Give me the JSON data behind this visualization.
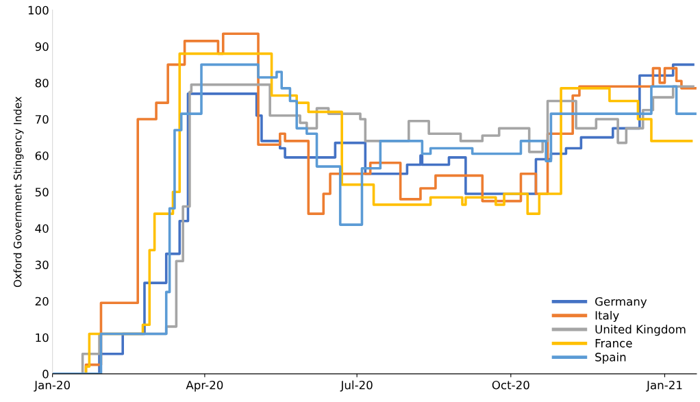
{
  "chart_data": {
    "type": "step",
    "ylabel": "Oxford Government Stingency Index",
    "xlim": [
      "2020-01-01",
      "2021-01-20"
    ],
    "ylim": [
      0,
      100
    ],
    "yticks": [
      0,
      10,
      20,
      30,
      40,
      50,
      60,
      70,
      80,
      90,
      100
    ],
    "xticks": [
      {
        "value": "2020-01-01",
        "label": "Jan-20"
      },
      {
        "value": "2020-04-01",
        "label": "Apr-20"
      },
      {
        "value": "2020-07-01",
        "label": "Jul-20"
      },
      {
        "value": "2020-10-01",
        "label": "Oct-20"
      },
      {
        "value": "2021-01-01",
        "label": "Jan-21"
      }
    ],
    "grid": false,
    "legend": "bottom right",
    "marker": "none",
    "line_style": "solid",
    "series": [
      {
        "name": "Germany",
        "color": "#4472c4",
        "x": [
          "2020-01-01",
          "2020-01-29",
          "2020-02-12",
          "2020-02-25",
          "2020-03-09",
          "2020-03-17",
          "2020-03-22",
          "2020-05-02",
          "2020-05-05",
          "2020-05-16",
          "2020-05-19",
          "2020-06-18",
          "2020-07-06",
          "2020-07-31",
          "2020-08-08",
          "2020-08-09",
          "2020-08-25",
          "2020-09-04",
          "2020-10-16",
          "2020-10-25",
          "2020-11-03",
          "2020-11-12",
          "2020-12-01",
          "2020-12-17",
          "2021-01-06",
          "2021-01-18"
        ],
        "values": [
          0,
          5.5,
          11,
          25,
          33,
          42,
          77,
          71,
          64,
          62,
          59.5,
          63.5,
          55,
          57.5,
          60,
          57.5,
          59.5,
          49.5,
          59,
          60.5,
          62,
          65,
          67.5,
          82,
          85,
          85
        ]
      },
      {
        "name": "Italy",
        "color": "#ed7d31",
        "x": [
          "2020-01-01",
          "2020-01-21",
          "2020-01-30",
          "2020-02-21",
          "2020-03-03",
          "2020-03-10",
          "2020-03-20",
          "2020-04-09",
          "2020-04-12",
          "2020-05-03",
          "2020-05-16",
          "2020-05-19",
          "2020-06-02",
          "2020-06-11",
          "2020-06-15",
          "2020-07-09",
          "2020-07-27",
          "2020-08-08",
          "2020-08-17",
          "2020-09-14",
          "2020-10-07",
          "2020-10-16",
          "2020-10-23",
          "2020-11-07",
          "2020-11-11",
          "2020-12-25",
          "2020-12-29",
          "2021-01-01",
          "2021-01-08",
          "2021-01-11",
          "2021-01-20"
        ],
        "values": [
          0,
          2.5,
          19.5,
          70,
          74.5,
          85,
          91.5,
          88,
          93.5,
          63,
          66,
          64,
          44,
          49.5,
          55,
          58,
          48,
          51,
          54.5,
          47.5,
          55,
          49.5,
          66,
          76.5,
          79,
          84,
          80,
          84,
          80.5,
          78.5,
          78.5
        ]
      },
      {
        "name": "United Kingdom",
        "color": "#a5a5a5",
        "x": [
          "2020-01-01",
          "2020-01-19",
          "2020-01-29",
          "2020-03-09",
          "2020-03-15",
          "2020-03-19",
          "2020-03-23",
          "2020-03-24",
          "2020-05-10",
          "2020-05-28",
          "2020-06-01",
          "2020-06-07",
          "2020-06-14",
          "2020-07-03",
          "2020-07-06",
          "2020-08-01",
          "2020-08-13",
          "2020-09-01",
          "2020-09-14",
          "2020-09-24",
          "2020-10-12",
          "2020-10-20",
          "2020-10-23",
          "2020-11-09",
          "2020-11-21",
          "2020-12-04",
          "2020-12-09",
          "2020-12-19",
          "2020-12-25",
          "2021-01-06",
          "2021-01-18"
        ],
        "values": [
          0,
          5.5,
          11,
          13,
          31,
          46,
          77.5,
          79.5,
          71,
          69,
          67.5,
          73,
          71.5,
          70,
          64,
          69.5,
          66,
          64,
          65.5,
          67.5,
          61,
          64,
          75,
          67.5,
          70,
          63.5,
          67.5,
          72.5,
          76,
          79,
          79
        ]
      },
      {
        "name": "France",
        "color": "#ffc000",
        "x": [
          "2020-01-01",
          "2020-01-21",
          "2020-01-23",
          "2020-02-24",
          "2020-02-28",
          "2020-03-02",
          "2020-03-13",
          "2020-03-17",
          "2020-05-11",
          "2020-05-26",
          "2020-06-02",
          "2020-06-22",
          "2020-07-11",
          "2020-08-14",
          "2020-09-02",
          "2020-09-04",
          "2020-09-22",
          "2020-09-27",
          "2020-10-11",
          "2020-10-18",
          "2020-10-31",
          "2020-11-29",
          "2020-12-16",
          "2020-12-24",
          "2021-01-17"
        ],
        "values": [
          0,
          2,
          11,
          13.5,
          34,
          44,
          50,
          88,
          76.5,
          74.5,
          72,
          52,
          46.5,
          48.5,
          46.5,
          48.5,
          46.5,
          49.5,
          44,
          49.5,
          78.5,
          75,
          70,
          64,
          64
        ]
      },
      {
        "name": "Spain",
        "color": "#5b9bd5",
        "x": [
          "2020-01-01",
          "2020-01-30",
          "2020-03-09",
          "2020-03-11",
          "2020-03-14",
          "2020-03-18",
          "2020-03-30",
          "2020-05-03",
          "2020-05-14",
          "2020-05-17",
          "2020-05-22",
          "2020-05-26",
          "2020-06-01",
          "2020-06-07",
          "2020-06-21",
          "2020-07-04",
          "2020-07-15",
          "2020-08-09",
          "2020-08-14",
          "2020-09-08",
          "2020-10-07",
          "2020-10-22",
          "2020-10-25",
          "2020-12-24",
          "2021-01-08",
          "2021-01-20"
        ],
        "values": [
          0,
          11,
          22.5,
          45.5,
          67,
          71.5,
          85,
          81.5,
          83,
          78.5,
          75,
          67.5,
          66,
          57,
          41,
          56.5,
          64,
          60.5,
          62,
          60.5,
          64,
          58.5,
          71.5,
          79,
          71.5,
          71.5
        ]
      }
    ]
  }
}
